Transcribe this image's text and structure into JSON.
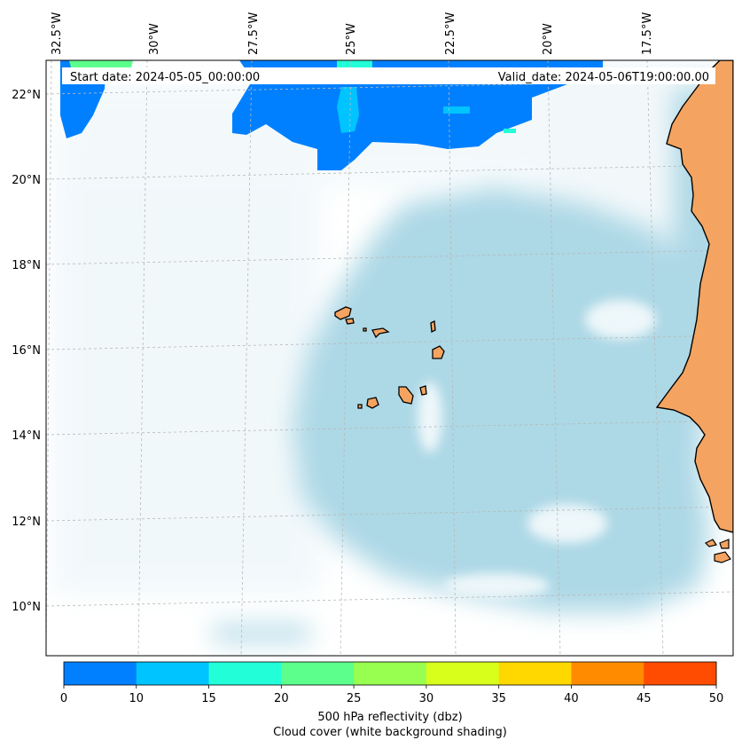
{
  "header": {
    "start_date": "Start date: 2024-05-05_00:00:00",
    "valid_date": "Valid_date: 2024-05-06T19:00:00.00"
  },
  "axes": {
    "lon_labels": [
      "32.5°W",
      "30°W",
      "27.5°W",
      "25°W",
      "22.5°W",
      "20°W",
      "17.5°W"
    ],
    "lat_labels": [
      "22°N",
      "20°N",
      "18°N",
      "16°N",
      "14°N",
      "12°N",
      "10°N"
    ]
  },
  "colorbar": {
    "ticks": [
      "0",
      "10",
      "15",
      "20",
      "25",
      "30",
      "35",
      "40",
      "45",
      "50"
    ],
    "colors": [
      "#0080ff",
      "#00c4ff",
      "#22ffd8",
      "#5cff8c",
      "#98ff50",
      "#d8ff1c",
      "#ffd800",
      "#ff8c00",
      "#ff4c00"
    ],
    "label_line1": "500 hPa reflectivity (dbz)",
    "label_line2": "Cloud cover (white background shading)"
  },
  "colors": {
    "land": "#f4a460",
    "cloud": "#add8e6",
    "grid": "#b0b0b0"
  }
}
